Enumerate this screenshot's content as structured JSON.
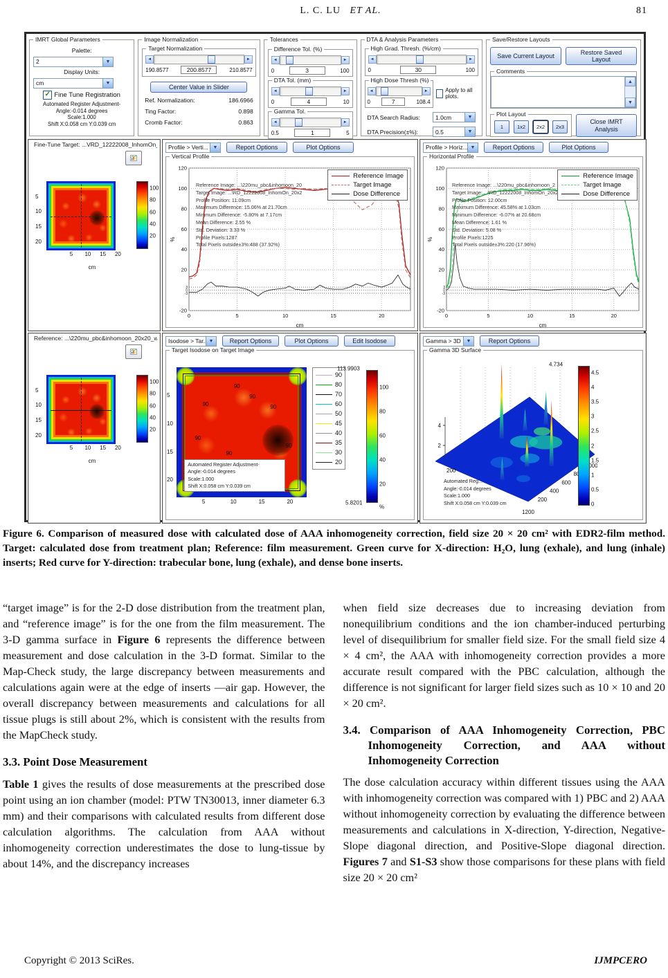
{
  "page": {
    "header": {
      "author": "L. C. LU",
      "etal": "ET  AL.",
      "page_number": "81"
    },
    "footer": {
      "left": "Copyright © 2013 SciRes.",
      "right": "IJMPCERO"
    }
  },
  "app": {
    "global_params": {
      "title": "IMRT Global Parameters",
      "palette_label": "Palette:",
      "palette_value": "2",
      "display_units_label": "Display Units:",
      "display_units_value": "cm",
      "fine_tune_label": "Fine Tune Registration",
      "adjustment_lines": [
        "Automated Register Adjustment-",
        "Angle:-0.014 degrees",
        "Scale:1.000",
        "Shift X:0.058 cm Y:0.039 cm"
      ]
    },
    "image_normalization": {
      "title": "Image Normalization",
      "target_group": "Target Normalization",
      "slider_min": "190.8577",
      "slider_value": "200.8577",
      "slider_max": "210.8577",
      "center_button": "Center Value in Slider",
      "fields": [
        {
          "label": "Ref. Normalization:",
          "value": "186.6966"
        },
        {
          "label": "Ting Factor:",
          "value": "0.898"
        },
        {
          "label": "Cromb Factor:",
          "value": "0.863"
        }
      ]
    },
    "tolerances": {
      "title": "Tolerances",
      "groups": [
        {
          "label": "Difference Tol. (%)",
          "min": "0",
          "value": "3",
          "max": "100"
        },
        {
          "label": "DTA Tol. (mm)",
          "min": "0",
          "value": "4",
          "max": "10"
        },
        {
          "label": "Gamma Tol.",
          "min": "0.5",
          "value": "1",
          "max": "5"
        }
      ]
    },
    "dta_params": {
      "title": "DTA & Analysis Parameters",
      "grad_group": {
        "label": "High Grad. Thresh. (%/cm)",
        "min": "0",
        "value": "30",
        "max": "100"
      },
      "dose_group": {
        "label": "High Dose Thresh (%)",
        "min": "0",
        "value": "7",
        "max": "108.4"
      },
      "apply_label": "Apply to all plots.",
      "search_label": "DTA Search Radius:",
      "search_value": "1.0cm",
      "precision_label": "DTA Precision(±%):",
      "precision_value": "0.5"
    },
    "layouts": {
      "title": "Save/Restore Layouts",
      "save_button": "Save Current Layout",
      "restore_button": "Restore Saved Layout",
      "comments_label": "Comments",
      "plot_layout_label": "Plot Layout",
      "layout_buttons": [
        "1",
        "1x2",
        "2x2",
        "2x3"
      ],
      "active_layout": "2x2",
      "close_button": "Close IMRT Analysis"
    },
    "fine_tune_panel": {
      "title": "Fine-Tune Target:  ...VRD_12222008_InhomOn_20x20_isodose"
    },
    "reference_panel": {
      "title": "Reference:  ...\\220mu_pbc&inhomoon_20x20_wbolus"
    },
    "vertical_toolbar": {
      "select": "Profile > Verti...",
      "report": "Report Options",
      "plot": "Plot Options",
      "group": "Vertical Profile"
    },
    "horizontal_toolbar": {
      "select": "Profile > Horiz...",
      "report": "Report Options",
      "plot": "Plot Options",
      "group": "Horizontal Profile"
    },
    "isodose_toolbar": {
      "select": "Isodose > Tar...",
      "report": "Report Options",
      "plot": "Plot Options",
      "edit": "Edit Isodose",
      "group": "Target Isodose  on Target Image"
    },
    "gamma_toolbar": {
      "select": "Gamma > 3D ...",
      "report": "Report Options",
      "group": "Gamma 3D Surface"
    },
    "isodose_overlay": [
      "Automated Register Adjustment-",
      "Angle:-0.014 degrees",
      "Scale:1.000",
      "Shift X:0.058 cm Y:0.039 cm"
    ],
    "gamma_overlay": [
      "Automated Reg...",
      "Angle:-0.014 degrees",
      "Scale:1.000",
      "Shift X:0.058 cm Y:0.039 cm"
    ]
  },
  "figure": {
    "caption": "Figure 6. Comparison of measured dose with calculated dose of AAA inhomogeneity correction, field size 20 × 20 cm² with EDR2-film method. Target: calculated dose from treatment plan; Reference: film measurement. Green curve for X-direction: H₂O, lung (exhale), and lung (inhale) inserts; Red curve for Y-direction: trabecular bone, lung (exhale), and dense bone inserts."
  },
  "body": {
    "left": [
      {
        "h": false,
        "seg": [
          {
            "t": "“target image” is for the 2-D dose distribution from the treatment plan, and “reference image” is for the one from the film measurement. The 3-D gamma surface in "
          },
          {
            "t": "Figure 6",
            "b": true
          },
          {
            "t": " represents the difference between measurement and dose calculation in the 3-D format. Similar to the Map-Check study, the large discrepancy between measurements and calculations again were at the edge of inserts —air gap. However, the overall discrepancy between measurements and calculations for all tissue plugs is still about 2%, which is consistent with the results from the MapCheck study."
          }
        ]
      },
      {
        "h": true,
        "seg": [
          {
            "t": "3.3. Point Dose Measurement",
            "b": true
          }
        ]
      },
      {
        "h": false,
        "seg": [
          {
            "t": "Table 1",
            "b": true
          },
          {
            "t": " gives the results of dose measurements at the prescribed dose point using an ion chamber (model: PTW TN30013, inner diameter 6.3 mm) and their comparisons with calculated results from different dose calculation algorithms. The calculation from AAA without inhomogeneity correction underestimates the dose to lung-tissue by about 14%, and the discrepancy increases"
          }
        ]
      }
    ],
    "right": [
      {
        "h": false,
        "seg": [
          {
            "t": "when field size decreases due to increasing deviation from nonequilibrium conditions and the ion chamber-induced perturbing level of disequilibrium for smaller field size. For the small field size 4 × 4 cm², the AAA with inhomogeneity correction provides a more accurate result compared with the PBC calculation, although the difference is not significant for larger field sizes such as 10 × 10 and 20 × 20 cm²."
          }
        ]
      },
      {
        "h": true,
        "seg": [
          {
            "t": "3.4. Comparison of AAA Inhomogeneity Correction, PBC Inhomogeneity Correction, and AAA without Inhomogeneity Correction",
            "b": true
          }
        ]
      },
      {
        "h": false,
        "seg": [
          {
            "t": "The dose calculation accuracy within different tissues using the AAA with inhomogeneity correction was compared with 1) PBC and 2) AAA without inhomogeneity correction by evaluating the difference between measurements and calculations in X-direction, Y-direction, Negative-Slope diagonal direction, and Positive-Slope diagonal direction. "
          },
          {
            "t": "Figures 7",
            "b": true
          },
          {
            "t": " and "
          },
          {
            "t": "S1-S3",
            "b": true
          },
          {
            "t": " show those comparisons for these plans with field size 20 × 20 cm²"
          }
        ]
      }
    ]
  },
  "chart_data": [
    {
      "id": "vertical_profile",
      "type": "line",
      "title": "Vertical Profile",
      "xlabel": "cm",
      "ylabel": "%",
      "xlim": [
        0,
        23
      ],
      "ylim": [
        -20,
        120
      ],
      "xticks": [
        0,
        5,
        10,
        15,
        20
      ],
      "yticks": [
        120,
        100,
        80,
        60,
        40,
        20,
        -20
      ],
      "tolerance_lines": [
        3,
        0,
        -3
      ],
      "legend_position": "top-right",
      "grid": true,
      "series": [
        {
          "name": "Reference Image",
          "style": "solid",
          "color": "#aa1515",
          "x": [
            0,
            0.4,
            0.8,
            1.1,
            1.4,
            1.7,
            2.1,
            2.6,
            3.2,
            4,
            5,
            6,
            7,
            8,
            9,
            10,
            11,
            12,
            13,
            14,
            15,
            16,
            17,
            18,
            19,
            20,
            20.8,
            21.4,
            21.8,
            22.1,
            22.5,
            23
          ],
          "y": [
            13,
            14,
            17,
            30,
            62,
            88,
            97,
            100,
            99,
            98,
            99,
            97,
            96,
            98,
            100,
            101,
            100,
            99,
            98,
            99,
            100,
            99,
            98,
            97,
            98,
            100,
            101,
            98,
            85,
            55,
            24,
            15
          ]
        },
        {
          "name": "Target Image",
          "style": "dashed",
          "color": "#c4706a",
          "x": [
            0,
            0.4,
            0.8,
            1.1,
            1.4,
            1.7,
            2.1,
            2.6,
            3.2,
            4,
            5,
            6,
            7,
            8,
            9,
            10,
            11,
            12,
            13,
            14,
            15,
            16,
            17,
            18,
            19,
            20,
            20.8,
            21.4,
            21.8,
            22.1,
            22.5,
            23
          ],
          "y": [
            11,
            12,
            15,
            26,
            55,
            84,
            96,
            100,
            100,
            99,
            100,
            98,
            97,
            99,
            100,
            100,
            99,
            100,
            99,
            100,
            99,
            97,
            88,
            79,
            84,
            97,
            100,
            96,
            80,
            48,
            20,
            12
          ]
        },
        {
          "name": "Dose Difference",
          "style": "solid",
          "color": "#1c1c1c",
          "x": [
            0,
            0.8,
            1.4,
            1.9,
            2.3,
            2.8,
            3.5,
            4.2,
            5,
            6,
            6.6,
            7.17,
            7.7,
            8.3,
            9,
            10,
            10.4,
            11,
            12,
            13,
            13.6,
            14.2,
            15,
            16,
            16.7,
            17.3,
            18,
            18.6,
            19.2,
            20,
            20.6,
            21.1,
            21.7,
            22.2,
            22.6,
            23
          ],
          "y": [
            -2,
            -2,
            1,
            6,
            8,
            4,
            4,
            3,
            3,
            1,
            -2,
            -5.8,
            -2,
            0,
            1,
            2,
            4,
            1,
            0,
            1,
            5,
            2,
            1,
            1,
            3,
            6,
            4,
            7,
            5,
            3,
            5,
            7,
            15,
            6,
            3,
            1
          ]
        }
      ],
      "stats": [
        "Reference Image:  ...\\220mu_pbc&inhomoon_20",
        "Target Image:  ...\\RD_12222008_InhomOn_20x2",
        "Profile Position: 11.09cm",
        "Maximum Difference: 15.06% at 21.70cm",
        "Minimum Difference: -5.80% at 7.17cm",
        "Mean Difference: 2.55 %",
        "Std. Deviation: 3.33 %",
        "Profile Pixels:1287",
        "Total Pixels outside±3%:488 (37.92%)"
      ]
    },
    {
      "id": "horizontal_profile",
      "type": "line",
      "title": "Horizontal Profile",
      "xlabel": "cm",
      "ylabel": "%",
      "xlim": [
        0,
        23
      ],
      "ylim": [
        -20,
        120
      ],
      "xticks": [
        0,
        5,
        10,
        15,
        20
      ],
      "yticks": [
        120,
        100,
        80,
        60,
        40,
        20,
        -20
      ],
      "tolerance_lines": [
        3,
        0,
        -3
      ],
      "legend_position": "top-right",
      "grid": true,
      "series": [
        {
          "name": "Reference Image",
          "style": "solid",
          "color": "#089c30",
          "x": [
            0,
            0.2,
            0.45,
            0.7,
            0.95,
            1.2,
            1.6,
            2,
            2.6,
            3.3,
            4,
            5,
            6,
            7,
            8,
            9,
            10,
            11,
            12,
            13,
            14,
            15,
            16,
            17,
            18,
            19,
            20,
            20.7,
            21.3,
            21.9,
            22.3,
            22.7,
            23
          ],
          "y": [
            3,
            6,
            20,
            55,
            82,
            90,
            89,
            87,
            88,
            90,
            92,
            95,
            97,
            98,
            98,
            99,
            98,
            98,
            99,
            98,
            98,
            97,
            97,
            96,
            96,
            95,
            95,
            93,
            89,
            70,
            40,
            16,
            8
          ]
        },
        {
          "name": "Target Image",
          "style": "dashed",
          "color": "#5fd87f",
          "x": [
            0,
            0.2,
            0.45,
            0.7,
            0.95,
            1.2,
            1.6,
            2,
            2.6,
            3.3,
            4,
            5,
            6,
            7,
            8,
            9,
            10,
            11,
            12,
            13,
            14,
            15,
            16,
            17,
            18,
            19,
            20,
            20.7,
            21.3,
            21.9,
            22.3,
            22.7,
            23
          ],
          "y": [
            2,
            3,
            8,
            25,
            55,
            75,
            85,
            88,
            89,
            91,
            93,
            96,
            98,
            99,
            99,
            100,
            99,
            99,
            100,
            99,
            99,
            98,
            98,
            97,
            96,
            95,
            95,
            94,
            90,
            66,
            35,
            13,
            6
          ]
        },
        {
          "name": "Dose Difference",
          "style": "solid",
          "color": "#1c1c1c",
          "x": [
            0,
            0.3,
            0.6,
            0.85,
            1.03,
            1.25,
            1.6,
            2,
            2.6,
            3.3,
            4,
            5,
            6,
            8,
            10,
            12,
            14,
            16,
            18,
            19,
            20,
            20.68,
            21.1,
            21.6,
            22.1,
            22.5,
            23
          ],
          "y": [
            0,
            2,
            8,
            25,
            45.6,
            28,
            12,
            4,
            2,
            1,
            1,
            1,
            1,
            0,
            1,
            0,
            1,
            1,
            1,
            0,
            2,
            -6,
            -2,
            3,
            7,
            3,
            1
          ]
        }
      ],
      "stats": [
        "Reference Image:  ...\\220mu_pbc&inhomoon_2",
        "Target Image:  ...\\RD_12222008_InhomOn_20x2",
        "Profile Position: 12.00cm",
        "Maximum Difference: 45.58% at 1.03cm",
        "Minimum Difference: -6.07% at 20.68cm",
        "Mean Difference: 1.61 %",
        "Std. Deviation: 5.08 %",
        "Profile Pixels:1225",
        "Total Pixels outside±3%:220 (17.96%)"
      ]
    },
    {
      "id": "target_dose_map",
      "type": "heatmap",
      "xlabel": "cm",
      "xticks": [
        5,
        10,
        15,
        20
      ],
      "yticks": [
        5,
        10,
        15,
        20
      ],
      "colorbar_ticks": [
        100,
        80,
        60,
        40,
        20
      ],
      "range": [
        0,
        112
      ]
    },
    {
      "id": "reference_dose_map",
      "type": "heatmap",
      "xlabel": "cm",
      "xticks": [
        5,
        10,
        15,
        20
      ],
      "yticks": [
        5,
        10,
        15,
        20
      ],
      "colorbar_ticks": [
        100,
        80,
        60,
        40,
        20
      ],
      "range": [
        0,
        112
      ]
    },
    {
      "id": "target_isodose",
      "type": "contour",
      "contour_levels": [
        90,
        80,
        70,
        60,
        50,
        45,
        40,
        35,
        30,
        20
      ],
      "visible_label": "90",
      "colorbar_max": "113.9903",
      "colorbar_min": "5.8201",
      "colorbar_ticks": [
        100,
        80,
        60,
        40,
        20
      ],
      "unit": "%",
      "xticks": [
        5,
        10,
        15,
        20
      ],
      "yticks": [
        5,
        10,
        15,
        20
      ]
    },
    {
      "id": "gamma_3d",
      "type": "surface",
      "title": "Gamma 3D Surface",
      "zlim": [
        0,
        4.734
      ],
      "colorbar_max": "4.734",
      "colorbar_ticks": [
        "4.5",
        "4",
        "3.5",
        "3",
        "2.5",
        "2",
        "1.5",
        "1",
        "0.5",
        "0"
      ],
      "wall_ticks": [
        "4",
        "2"
      ],
      "depth_ticks": [
        "1200",
        "1000",
        "800",
        "600",
        "400",
        "200"
      ],
      "floor_label_left": "200",
      "floor_label_bottom": "1200",
      "peaks": [
        {
          "u": 0.52,
          "v": 0.22,
          "h": 1.0,
          "hot": true
        },
        {
          "u": 0.56,
          "v": 0.82,
          "h": 0.88,
          "hot": true
        },
        {
          "u": 0.12,
          "v": 0.62,
          "h": 0.3,
          "hot": false
        },
        {
          "u": 0.4,
          "v": 0.66,
          "h": 0.42,
          "hot": true
        },
        {
          "u": 0.9,
          "v": 0.38,
          "h": 0.45,
          "hot": false
        },
        {
          "u": 0.72,
          "v": 0.3,
          "h": 0.3,
          "hot": false
        }
      ]
    }
  ]
}
